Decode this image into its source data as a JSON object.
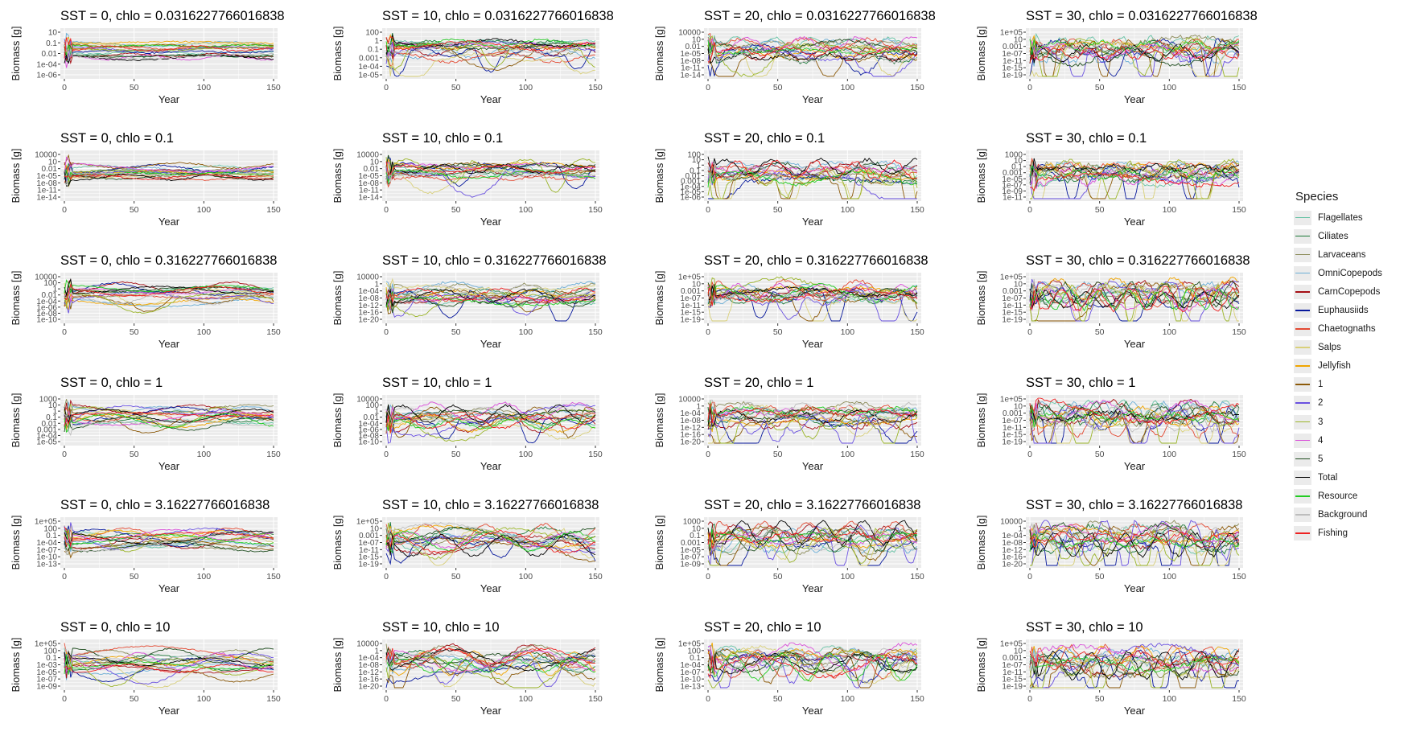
{
  "figure": {
    "y_axis_label": "Biomass [g]",
    "x_axis_label": "Year",
    "x_ticks": [
      "0",
      "50",
      "100",
      "150"
    ]
  },
  "legend": {
    "title": "Species",
    "items": [
      {
        "label": "Flagellates",
        "color": "#66c2a5"
      },
      {
        "label": "Ciliates",
        "color": "#1b7837"
      },
      {
        "label": "Larvaceans",
        "color": "#8c8c5a"
      },
      {
        "label": "OmniCopepods",
        "color": "#6baed6"
      },
      {
        "label": "CarnCopepods",
        "color": "#a50f15"
      },
      {
        "label": "Euphausiids",
        "color": "#08199c"
      },
      {
        "label": "Chaetognaths",
        "color": "#e34a33"
      },
      {
        "label": "Salps",
        "color": "#d9d07a"
      },
      {
        "label": "Jellyfish",
        "color": "#f0a500"
      },
      {
        "label": "1",
        "color": "#8c5a0a"
      },
      {
        "label": "2",
        "color": "#6a51e0"
      },
      {
        "label": "3",
        "color": "#9bb52a"
      },
      {
        "label": "4",
        "color": "#d94fd9"
      },
      {
        "label": "5",
        "color": "#1f4d1f"
      },
      {
        "label": "Total",
        "color": "#000000"
      },
      {
        "label": "Resource",
        "color": "#22cc22"
      },
      {
        "label": "Background",
        "color": "#bdbdbd"
      },
      {
        "label": "Fishing",
        "color": "#ee2222"
      }
    ]
  },
  "chart_data": [
    {
      "type": "line",
      "title": "SST = 0, chlo = 0.0316227766016838",
      "xlim": [
        0,
        150
      ],
      "y_scale": "log",
      "y_ticks": [
        "10",
        "0.1",
        "0.01",
        "1e-04",
        "1e-06"
      ]
    },
    {
      "type": "line",
      "title": "SST = 10, chlo = 0.0316227766016838",
      "xlim": [
        0,
        150
      ],
      "y_scale": "log",
      "y_ticks": [
        "100",
        "1",
        "0.1",
        "0.001",
        "1e-04",
        "1e-05"
      ]
    },
    {
      "type": "line",
      "title": "SST = 20, chlo = 0.0316227766016838",
      "xlim": [
        0,
        150
      ],
      "y_scale": "log",
      "y_ticks": [
        "10000",
        "10",
        "0.01",
        "1e-05",
        "1e-08",
        "1e-11",
        "1e-14"
      ]
    },
    {
      "type": "line",
      "title": "SST = 30, chlo = 0.0316227766016838",
      "xlim": [
        0,
        150
      ],
      "y_scale": "log",
      "y_ticks": [
        "1e+05",
        "10",
        "0.001",
        "1e-07",
        "1e-11",
        "1e-15",
        "1e-19"
      ]
    },
    {
      "type": "line",
      "title": "SST = 0, chlo = 0.1",
      "xlim": [
        0,
        150
      ],
      "y_scale": "log",
      "y_ticks": [
        "10000",
        "10",
        "0.01",
        "1e-05",
        "1e-08",
        "1e-11",
        "1e-14"
      ]
    },
    {
      "type": "line",
      "title": "SST = 10, chlo = 0.1",
      "xlim": [
        0,
        150
      ],
      "y_scale": "log",
      "y_ticks": [
        "10000",
        "10",
        "0.01",
        "1e-05",
        "1e-08",
        "1e-11",
        "1e-14"
      ]
    },
    {
      "type": "line",
      "title": "SST = 20, chlo = 0.1",
      "xlim": [
        0,
        150
      ],
      "y_scale": "log",
      "y_ticks": [
        "100",
        "10",
        "1",
        "0.1",
        "0.01",
        "0.001",
        "1e-04",
        "1e-05",
        "1e-06"
      ]
    },
    {
      "type": "line",
      "title": "SST = 30, chlo = 0.1",
      "xlim": [
        0,
        150
      ],
      "y_scale": "log",
      "y_ticks": [
        "1000",
        "10",
        "0.1",
        "0.001",
        "1e-05",
        "1e-07",
        "1e-09",
        "1e-11"
      ]
    },
    {
      "type": "line",
      "title": "SST = 0, chlo = 0.316227766016838",
      "xlim": [
        0,
        150
      ],
      "y_scale": "log",
      "y_ticks": [
        "10000",
        "100",
        "1",
        "0.01",
        "1e-04",
        "1e-06",
        "1e-08",
        "1e-10"
      ]
    },
    {
      "type": "line",
      "title": "SST = 10, chlo = 0.316227766016838",
      "xlim": [
        0,
        150
      ],
      "y_scale": "log",
      "y_ticks": [
        "10000",
        "1",
        "1e-04",
        "1e-08",
        "1e-12",
        "1e-16",
        "1e-20"
      ]
    },
    {
      "type": "line",
      "title": "SST = 20, chlo = 0.316227766016838",
      "xlim": [
        0,
        150
      ],
      "y_scale": "log",
      "y_ticks": [
        "1e+05",
        "10",
        "0.001",
        "1e-07",
        "1e-11",
        "1e-15",
        "1e-19"
      ]
    },
    {
      "type": "line",
      "title": "SST = 30, chlo = 0.316227766016838",
      "xlim": [
        0,
        150
      ],
      "y_scale": "log",
      "y_ticks": [
        "1e+05",
        "10",
        "0.001",
        "1e-07",
        "1e-11",
        "1e-15",
        "1e-19"
      ]
    },
    {
      "type": "line",
      "title": "SST = 0, chlo = 1",
      "xlim": [
        0,
        150
      ],
      "y_scale": "log",
      "y_ticks": [
        "1000",
        "10",
        "1",
        "0.1",
        "0.01",
        "0.001",
        "1e-04",
        "1e-05"
      ]
    },
    {
      "type": "line",
      "title": "SST = 10, chlo = 1",
      "xlim": [
        0,
        150
      ],
      "y_scale": "log",
      "y_ticks": [
        "10000",
        "100",
        "1",
        "0.01",
        "1e-04",
        "1e-06",
        "1e-08",
        "1e-10"
      ]
    },
    {
      "type": "line",
      "title": "SST = 20, chlo = 1",
      "xlim": [
        0,
        150
      ],
      "y_scale": "log",
      "y_ticks": [
        "10000",
        "1",
        "1e-04",
        "1e-08",
        "1e-12",
        "1e-16",
        "1e-20"
      ]
    },
    {
      "type": "line",
      "title": "SST = 30, chlo = 1",
      "xlim": [
        0,
        150
      ],
      "y_scale": "log",
      "y_ticks": [
        "1e+05",
        "10",
        "0.001",
        "1e-07",
        "1e-11",
        "1e-15",
        "1e-19"
      ]
    },
    {
      "type": "line",
      "title": "SST = 0, chlo = 3.16227766016838",
      "xlim": [
        0,
        150
      ],
      "y_scale": "log",
      "y_ticks": [
        "1e+05",
        "100",
        "0.1",
        "1e-04",
        "1e-07",
        "1e-10",
        "1e-13"
      ]
    },
    {
      "type": "line",
      "title": "SST = 10, chlo = 3.16227766016838",
      "xlim": [
        0,
        150
      ],
      "y_scale": "log",
      "y_ticks": [
        "1e+05",
        "10",
        "0.001",
        "1e-07",
        "1e-11",
        "1e-15",
        "1e-19"
      ]
    },
    {
      "type": "line",
      "title": "SST = 20, chlo = 3.16227766016838",
      "xlim": [
        0,
        150
      ],
      "y_scale": "log",
      "y_ticks": [
        "1000",
        "10",
        "0.1",
        "0.001",
        "1e-05",
        "1e-07",
        "1e-09"
      ]
    },
    {
      "type": "line",
      "title": "SST = 30, chlo = 3.16227766016838",
      "xlim": [
        0,
        150
      ],
      "y_scale": "log",
      "y_ticks": [
        "10000",
        "1",
        "1e-04",
        "1e-08",
        "1e-12",
        "1e-16",
        "1e-20"
      ]
    },
    {
      "type": "line",
      "title": "SST = 0, chlo = 10",
      "xlim": [
        0,
        150
      ],
      "y_scale": "log",
      "y_ticks": [
        "1e+05",
        "100",
        "0.1",
        "1e-03",
        "1e-05",
        "1e-07",
        "1e-09"
      ]
    },
    {
      "type": "line",
      "title": "SST = 10, chlo = 10",
      "xlim": [
        0,
        150
      ],
      "y_scale": "log",
      "y_ticks": [
        "10000",
        "1",
        "1e-04",
        "1e-08",
        "1e-12",
        "1e-16",
        "1e-20"
      ]
    },
    {
      "type": "line",
      "title": "SST = 20, chlo = 10",
      "xlim": [
        0,
        150
      ],
      "y_scale": "log",
      "y_ticks": [
        "1e+05",
        "100",
        "0.1",
        "1e-04",
        "1e-07",
        "1e-10",
        "1e-13"
      ]
    },
    {
      "type": "line",
      "title": "SST = 30, chlo = 10",
      "xlim": [
        0,
        150
      ],
      "y_scale": "log",
      "y_ticks": [
        "1e+05",
        "10",
        "0.001",
        "1e-07",
        "1e-11",
        "1e-15",
        "1e-19"
      ]
    }
  ]
}
